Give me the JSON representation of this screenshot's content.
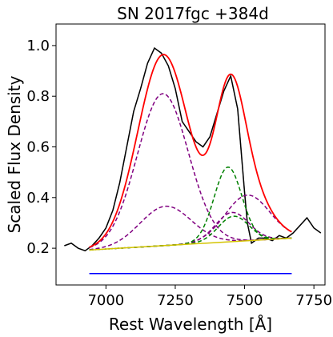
{
  "chart_data": {
    "type": "line",
    "title": "SN 2017fgc  +384d",
    "xlabel": "Rest Wavelength [Å]",
    "ylabel": "Scaled Flux Density",
    "xlim": [
      6820,
      7790
    ],
    "ylim": [
      0.055,
      1.085
    ],
    "x_ticks": [
      7000,
      7250,
      7500,
      7750
    ],
    "y_ticks": [
      0.2,
      0.4,
      0.6,
      0.8,
      1.0
    ],
    "x_tick_labels": [
      "7000",
      "7250",
      "7500",
      "7750"
    ],
    "y_tick_labels": [
      "0.2",
      "0.4",
      "0.6",
      "0.8",
      "1.0"
    ],
    "grid": false,
    "legend": "none",
    "continuum": {
      "color": "#d4c400",
      "x": [
        6940,
        7670
      ],
      "y": [
        0.193,
        0.24
      ]
    },
    "fit_range": {
      "color": "#0000ff",
      "x": [
        6940,
        7670
      ],
      "y": [
        0.1,
        0.1
      ]
    },
    "components": [
      {
        "color": "#800080",
        "center": 7205,
        "sigma": 92,
        "amplitude": 0.6
      },
      {
        "color": "#800080",
        "center": 7215,
        "sigma": 92,
        "amplitude": 0.155
      },
      {
        "color": "#800080",
        "center": 7510,
        "sigma": 80,
        "amplitude": 0.18
      },
      {
        "color": "#800080",
        "center": 7455,
        "sigma": 60,
        "amplitude": 0.115
      },
      {
        "color": "#008000",
        "center": 7440,
        "sigma": 50,
        "amplitude": 0.295
      },
      {
        "color": "#008000",
        "center": 7460,
        "sigma": 55,
        "amplitude": 0.1
      }
    ],
    "total_fit": {
      "color": "#ff0000",
      "x_range": [
        6940,
        7670
      ]
    },
    "observed": {
      "color": "#808080",
      "x": [
        6850,
        6875,
        6900,
        6925,
        6950,
        6975,
        7000,
        7025,
        7050,
        7075,
        7100,
        7125,
        7150,
        7175,
        7200,
        7225,
        7250,
        7275,
        7300,
        7325,
        7350,
        7375,
        7400,
        7425,
        7450,
        7475,
        7500,
        7510,
        7525,
        7550,
        7575,
        7600,
        7625,
        7650,
        7675,
        7700,
        7725,
        7750,
        7775
      ],
      "y": [
        0.21,
        0.22,
        0.2,
        0.19,
        0.21,
        0.24,
        0.28,
        0.35,
        0.46,
        0.6,
        0.74,
        0.83,
        0.93,
        0.99,
        0.97,
        0.92,
        0.83,
        0.7,
        0.66,
        0.62,
        0.6,
        0.64,
        0.73,
        0.82,
        0.88,
        0.75,
        0.42,
        0.3,
        0.22,
        0.24,
        0.24,
        0.23,
        0.25,
        0.24,
        0.26,
        0.29,
        0.32,
        0.28,
        0.26
      ]
    },
    "smoothed": {
      "color": "#000000",
      "x": [
        6850,
        6875,
        6900,
        6925,
        6950,
        6975,
        7000,
        7025,
        7050,
        7075,
        7100,
        7125,
        7150,
        7175,
        7200,
        7225,
        7250,
        7275,
        7300,
        7325,
        7350,
        7375,
        7400,
        7425,
        7450,
        7475,
        7500,
        7510,
        7525,
        7550,
        7575,
        7600,
        7625,
        7650,
        7675,
        7700,
        7725,
        7750,
        7775
      ],
      "y": [
        0.21,
        0.22,
        0.2,
        0.19,
        0.21,
        0.24,
        0.28,
        0.35,
        0.46,
        0.6,
        0.74,
        0.83,
        0.93,
        0.99,
        0.97,
        0.92,
        0.83,
        0.7,
        0.66,
        0.62,
        0.6,
        0.64,
        0.73,
        0.82,
        0.88,
        0.75,
        0.42,
        0.3,
        0.22,
        0.24,
        0.24,
        0.23,
        0.25,
        0.24,
        0.26,
        0.29,
        0.32,
        0.28,
        0.26
      ]
    }
  }
}
